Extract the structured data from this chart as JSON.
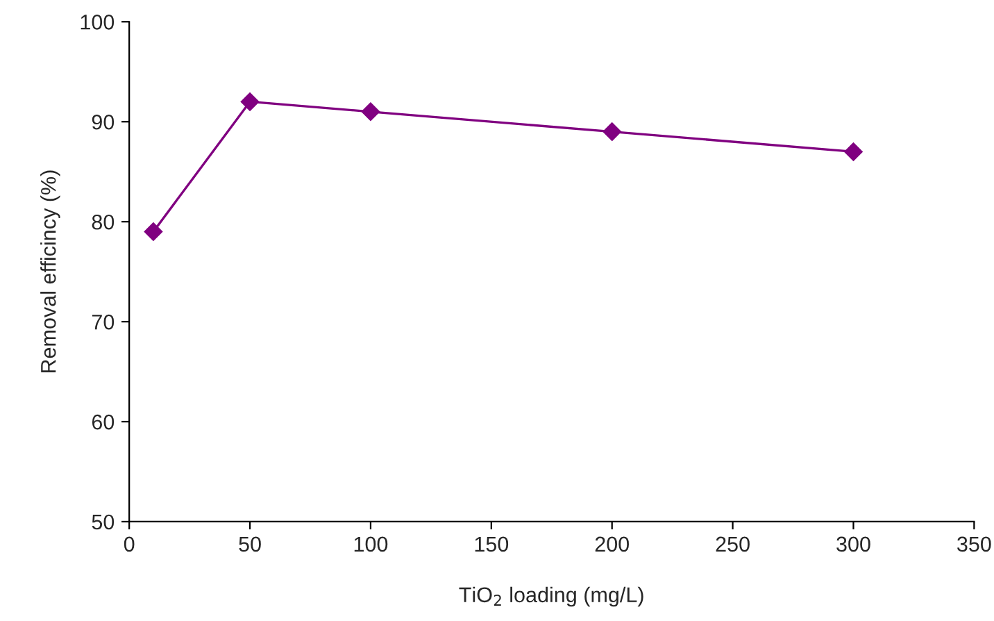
{
  "chart_data": {
    "type": "line",
    "xlabel": "TiO$_{2}$ loading (mg/L)",
    "ylabel": "Removal efficincy (%)",
    "x": [
      10,
      50,
      100,
      200,
      300
    ],
    "series": [
      {
        "color": "#800080",
        "values": [
          79,
          92,
          91,
          89,
          87
        ]
      }
    ],
    "marker": "diamond",
    "line_style": "solid",
    "xlim": [
      0,
      350
    ],
    "xticks": [
      0,
      50,
      100,
      150,
      200,
      250,
      300,
      350
    ],
    "ylim": [
      50,
      100
    ],
    "yticks": [
      50,
      60,
      70,
      80,
      90,
      100
    ],
    "grid": false,
    "legend": false
  }
}
